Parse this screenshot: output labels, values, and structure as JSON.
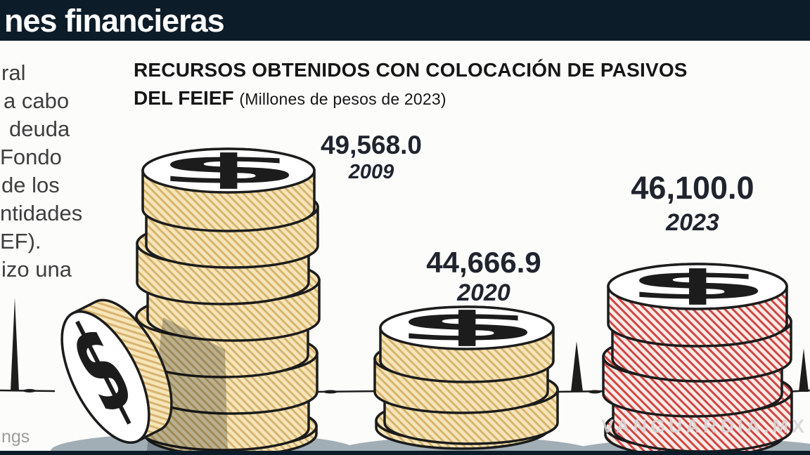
{
  "header": {
    "title_fragment": "nes financieras"
  },
  "intro_fragments": [
    "ral",
    "a cabo",
    "deuda",
    "Fondo",
    "de los",
    "ntidades",
    "EF).",
    "izo una"
  ],
  "chart": {
    "title_line1": "RECURSOS OBTENIDOS CON COLOCACIÓN DE PASIVOS",
    "title_line2_bold": "DEL FEIEF",
    "subtitle": "(Millones de pesos de 2023)",
    "points": [
      {
        "label": "49,568.0",
        "year": "2009",
        "value": 49568.0
      },
      {
        "label": "44,666.9",
        "year": "2020",
        "value": 44666.9
      },
      {
        "label": "46,100.0",
        "year": "2023",
        "value": 46100.0
      }
    ]
  },
  "chart_data": {
    "type": "bar",
    "variant": "coin-stack-pictogram",
    "title": "RECURSOS OBTENIDOS CON COLOCACIÓN DE PASIVOS DEL FEIEF",
    "subtitle": "(Millones de pesos de 2023)",
    "unit": "Millones de pesos de 2023",
    "categories": [
      "2009",
      "2020",
      "2023"
    ],
    "values": [
      49568.0,
      44666.9,
      46100.0
    ],
    "value_labels": [
      "49,568.0",
      "44,666.9",
      "46,100.0"
    ],
    "coin_colors": [
      "tan",
      "tan",
      "red"
    ],
    "coin_counts": [
      8,
      4,
      5
    ],
    "legend_position": "none",
    "grid": false
  },
  "watermark": "VANGUARDIA.MX",
  "source_fragment": "ngs",
  "colors": {
    "header_bg": "#0c1c29",
    "tan_base": "#f6e5b8",
    "tan_line": "#d7b471",
    "red_base": "#fcebe7",
    "red_line": "#cf4743",
    "shadow": "#a2aeb6",
    "outline": "#1c1c1c",
    "ground": "#1d1d1d"
  }
}
